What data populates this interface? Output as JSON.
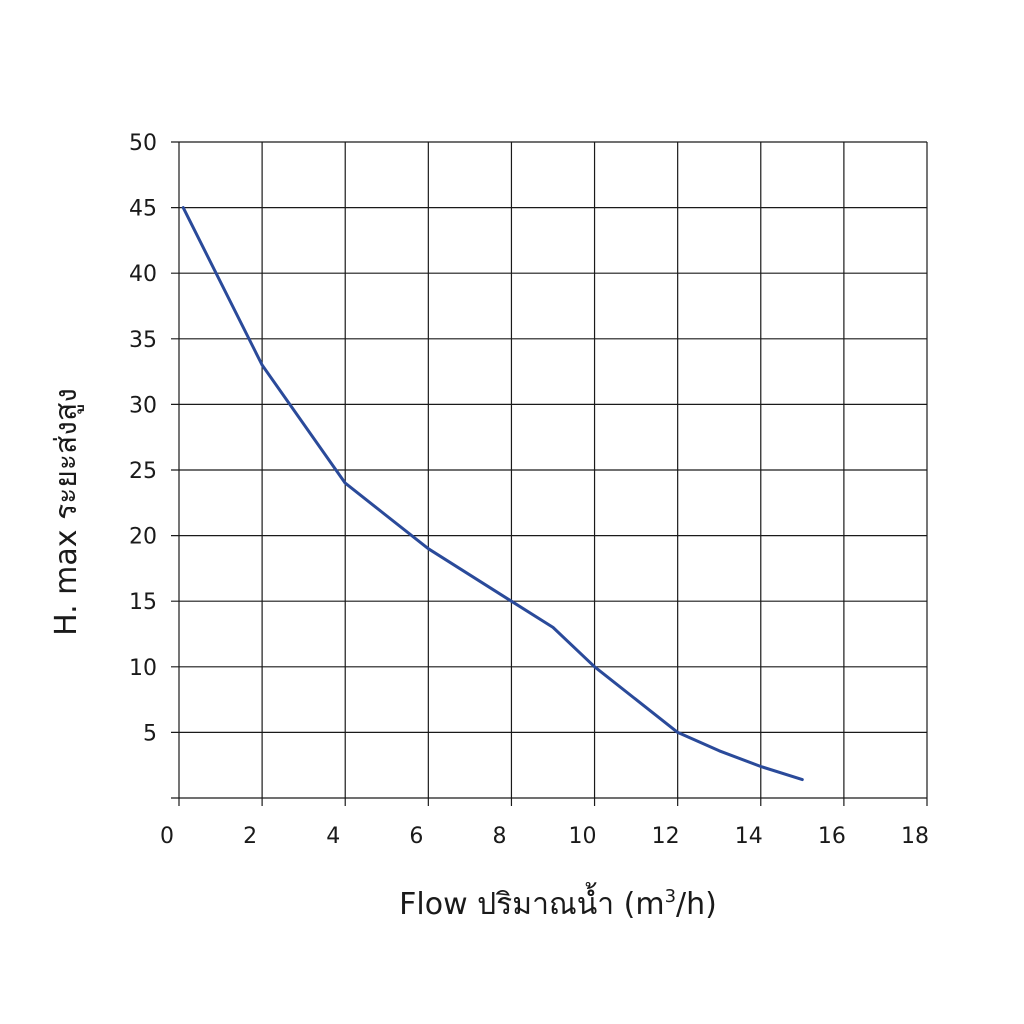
{
  "chart_data": {
    "type": "line",
    "xlabel_main": "Flow  ปริมาณน้ำ (m",
    "xlabel_sup": "3",
    "xlabel_end": "/h)",
    "ylabel": "H. max  ระยะส่งสูง",
    "xlim": [
      0,
      18
    ],
    "ylim": [
      0,
      50
    ],
    "xticks": [
      0,
      2,
      4,
      6,
      8,
      10,
      12,
      14,
      16,
      18
    ],
    "yticks": [
      5,
      10,
      15,
      20,
      25,
      30,
      35,
      40,
      45,
      50
    ],
    "grid": true,
    "series": [
      {
        "color": "#2a4a9a",
        "x": [
          0.1,
          2,
          4,
          6,
          8,
          9,
          10,
          12,
          13,
          14,
          15
        ],
        "y": [
          45,
          33,
          24,
          19,
          15,
          13,
          10,
          5,
          3.6,
          2.4,
          1.4
        ]
      }
    ]
  }
}
